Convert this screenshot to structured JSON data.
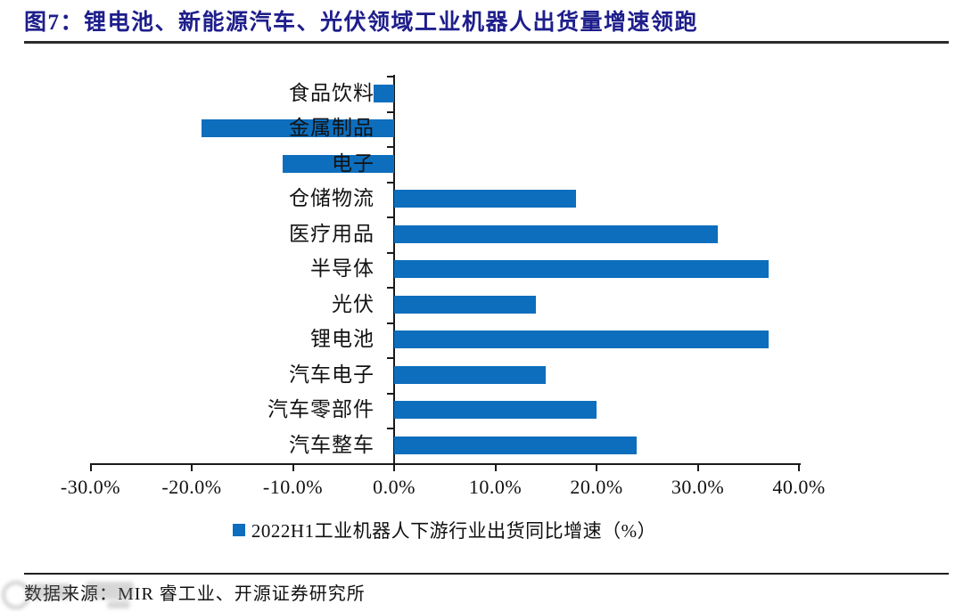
{
  "title": {
    "label": "图7：锂电池、新能源汽车、光伏领域工业机器人出货量增速领跑"
  },
  "source": {
    "label": "数据来源：MIR 睿工业、开源证券研究所"
  },
  "colors": {
    "bar": "#0d6ebd",
    "title": "#1e1e8c",
    "axis": "#1a1a1a"
  },
  "chart_data": {
    "type": "bar",
    "orientation": "horizontal",
    "title": "图7：锂电池、新能源汽车、光伏领域工业机器人出货量增速领跑",
    "legend": "2022H1工业机器人下游行业出货同比增速（%）",
    "legend_position": "bottom-center",
    "grid": false,
    "xlim": [
      -30,
      40
    ],
    "x_ticks": [
      "-30.0%",
      "-20.0%",
      "-10.0%",
      "0.0%",
      "10.0%",
      "20.0%",
      "30.0%",
      "40.0%"
    ],
    "categories": [
      "食品饮料",
      "金属制品",
      "电子",
      "仓储物流",
      "医疗用品",
      "半导体",
      "光伏",
      "锂电池",
      "汽车电子",
      "汽车零部件",
      "汽车整车"
    ],
    "values": [
      -2.0,
      -19.0,
      -11.0,
      18.0,
      32.0,
      37.0,
      14.0,
      37.0,
      15.0,
      20.0,
      24.0
    ],
    "ylabel": "",
    "xlabel": ""
  }
}
